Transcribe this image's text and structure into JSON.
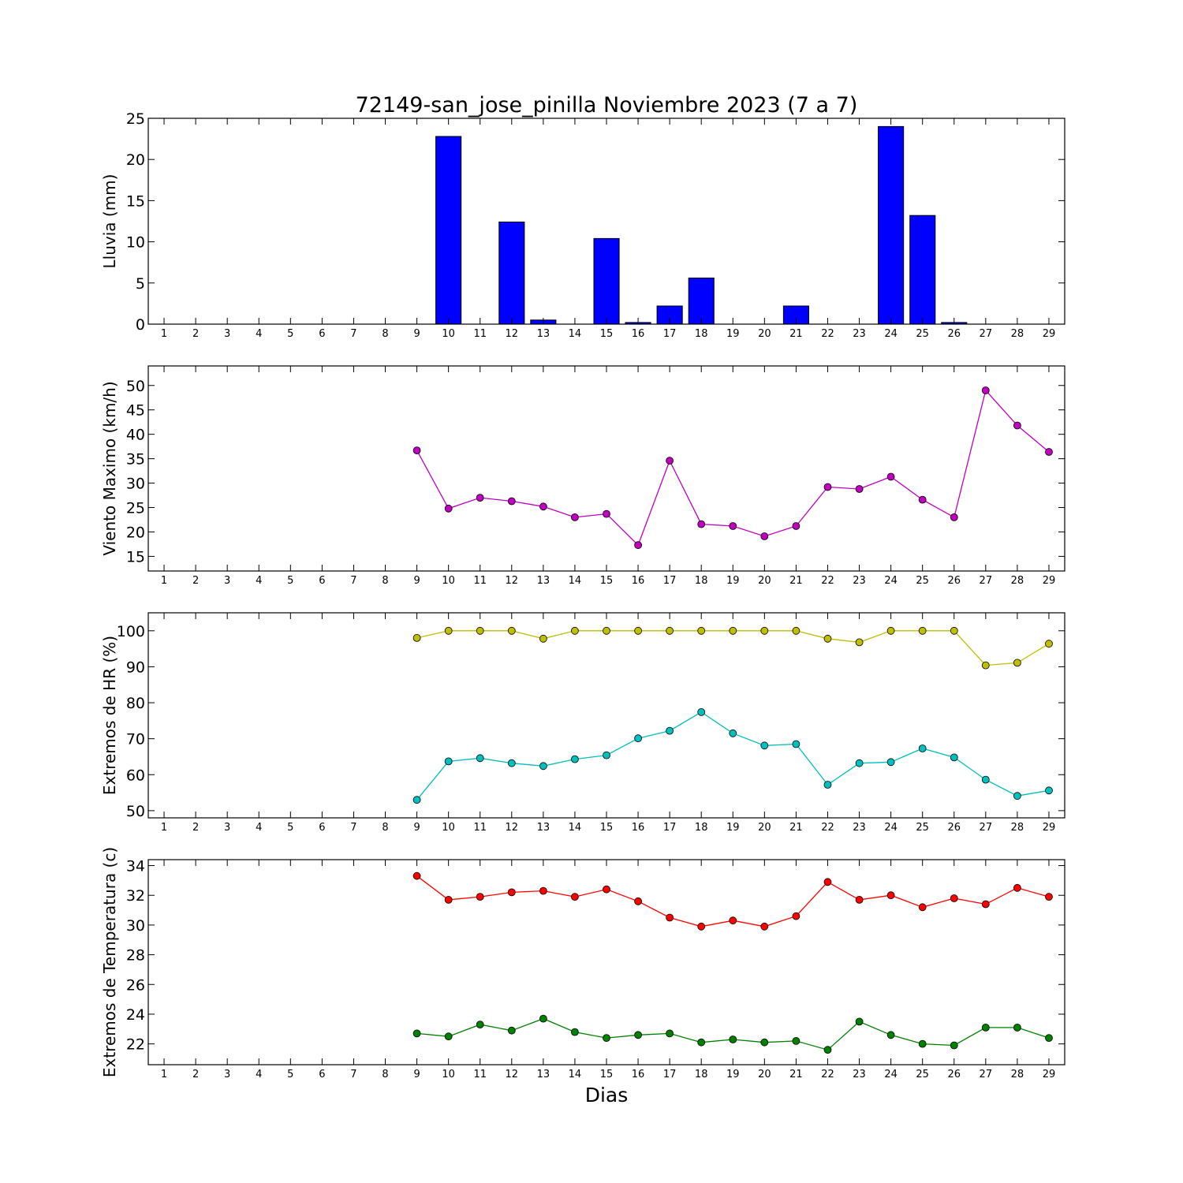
{
  "title": "72149-san_jose_pinilla Noviembre 2023  (7 a 7)",
  "xlabel": "Dias",
  "chart_data": [
    {
      "type": "bar",
      "ylabel": "Lluvia (mm)",
      "ylim": [
        0,
        25
      ],
      "yticks": [
        0,
        5,
        10,
        15,
        20,
        25
      ],
      "xlim": [
        0.5,
        29.5
      ],
      "x": [
        1,
        2,
        3,
        4,
        5,
        6,
        7,
        8,
        9,
        10,
        11,
        12,
        13,
        14,
        15,
        16,
        17,
        18,
        19,
        20,
        21,
        22,
        23,
        24,
        25,
        26,
        27,
        28,
        29
      ],
      "values": [
        null,
        null,
        null,
        null,
        null,
        null,
        null,
        null,
        0,
        22.8,
        0,
        12.4,
        0.5,
        0,
        10.4,
        0.2,
        2.2,
        5.6,
        0,
        0,
        2.2,
        0,
        0,
        24,
        13.2,
        0.2,
        0,
        0,
        null
      ],
      "color": "#0000ff",
      "grid": false
    },
    {
      "type": "line",
      "ylabel": "Viento Maximo (km/h)",
      "ylim": [
        12,
        54
      ],
      "yticks": [
        15,
        20,
        25,
        30,
        35,
        40,
        45,
        50
      ],
      "xlim": [
        0.5,
        29.5
      ],
      "x": [
        1,
        2,
        3,
        4,
        5,
        6,
        7,
        8,
        9,
        10,
        11,
        12,
        13,
        14,
        15,
        16,
        17,
        18,
        19,
        20,
        21,
        22,
        23,
        24,
        25,
        26,
        27,
        28,
        29
      ],
      "series": [
        {
          "color": "#bf00bf",
          "values": [
            null,
            null,
            null,
            null,
            null,
            null,
            null,
            null,
            36.7,
            24.8,
            27.0,
            26.3,
            25.2,
            23.0,
            23.7,
            17.3,
            34.6,
            21.6,
            21.2,
            19.1,
            21.2,
            29.2,
            28.8,
            31.3,
            26.6,
            23.0,
            49.0,
            41.8,
            36.4
          ]
        }
      ],
      "grid": false
    },
    {
      "type": "line",
      "ylabel": "Extremos de HR (%)",
      "ylim": [
        48,
        105
      ],
      "yticks": [
        50,
        60,
        70,
        80,
        90,
        100
      ],
      "xlim": [
        0.5,
        29.5
      ],
      "x": [
        1,
        2,
        3,
        4,
        5,
        6,
        7,
        8,
        9,
        10,
        11,
        12,
        13,
        14,
        15,
        16,
        17,
        18,
        19,
        20,
        21,
        22,
        23,
        24,
        25,
        26,
        27,
        28,
        29
      ],
      "series": [
        {
          "color": "#bfbf00",
          "values": [
            null,
            null,
            null,
            null,
            null,
            null,
            null,
            null,
            98,
            100,
            100,
            100,
            97.8,
            100,
            100,
            100,
            100,
            100,
            100,
            100,
            100,
            97.8,
            96.8,
            100,
            100,
            100,
            90.4,
            91.1,
            96.4
          ]
        },
        {
          "color": "#00bfbf",
          "values": [
            null,
            null,
            null,
            null,
            null,
            null,
            null,
            null,
            53,
            63.7,
            64.6,
            63.2,
            62.4,
            64.3,
            65.4,
            70.1,
            72.2,
            77.4,
            71.5,
            68.1,
            68.5,
            57.2,
            63.2,
            63.5,
            67.3,
            64.8,
            58.6,
            54.1,
            55.6
          ]
        }
      ],
      "grid": false
    },
    {
      "type": "line",
      "ylabel": "Extremos de Temperatura (c)",
      "ylim": [
        20.6,
        34.4
      ],
      "yticks": [
        22,
        24,
        26,
        28,
        30,
        32,
        34
      ],
      "xlim": [
        0.5,
        29.5
      ],
      "x": [
        1,
        2,
        3,
        4,
        5,
        6,
        7,
        8,
        9,
        10,
        11,
        12,
        13,
        14,
        15,
        16,
        17,
        18,
        19,
        20,
        21,
        22,
        23,
        24,
        25,
        26,
        27,
        28,
        29
      ],
      "series": [
        {
          "color": "#ff0000",
          "values": [
            null,
            null,
            null,
            null,
            null,
            null,
            null,
            null,
            33.3,
            31.7,
            31.9,
            32.2,
            32.3,
            31.9,
            32.4,
            31.6,
            30.5,
            29.9,
            30.3,
            29.9,
            30.6,
            32.9,
            31.7,
            32.0,
            31.2,
            31.8,
            31.4,
            32.5,
            31.9
          ]
        },
        {
          "color": "#008000",
          "values": [
            null,
            null,
            null,
            null,
            null,
            null,
            null,
            null,
            22.7,
            22.5,
            23.3,
            22.9,
            23.7,
            22.8,
            22.4,
            22.6,
            22.7,
            22.1,
            22.3,
            22.1,
            22.2,
            21.6,
            23.5,
            22.6,
            22.0,
            21.9,
            23.1,
            23.1,
            22.4
          ]
        }
      ],
      "grid": false
    }
  ]
}
